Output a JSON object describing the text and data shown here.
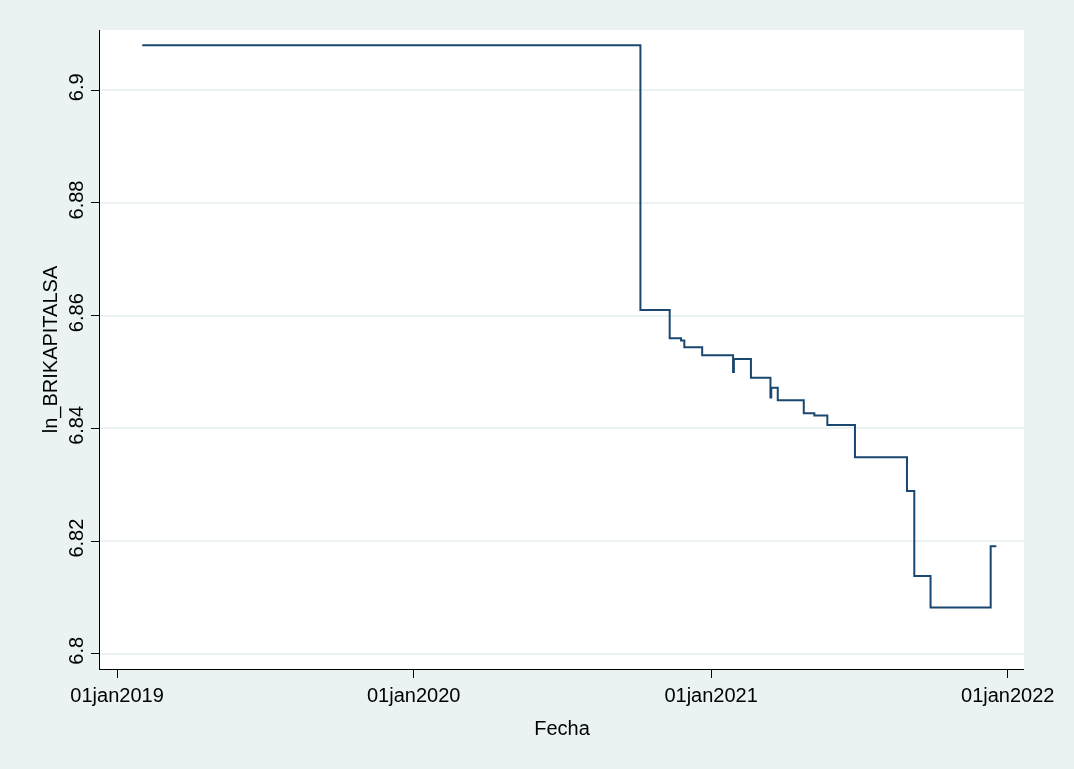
{
  "chart_data": {
    "type": "step",
    "xlabel": "Fecha",
    "ylabel": "ln_BRIKAPITALSA",
    "x": [
      "2019-02-01",
      "2020-10-06",
      "2020-11-11",
      "2020-11-25",
      "2020-11-29",
      "2020-12-21",
      "2021-01-28",
      "2021-01-29",
      "2021-02-19",
      "2021-03-15",
      "2021-03-16",
      "2021-03-24",
      "2021-04-25",
      "2021-05-08",
      "2021-05-24",
      "2021-06-27",
      "2021-08-30",
      "2021-09-08",
      "2021-09-28",
      "2021-12-11",
      "2021-12-18"
    ],
    "series": [
      {
        "color": "#1a476f",
        "values": [
          6.908,
          6.861,
          6.856,
          6.8556,
          6.8544,
          6.853,
          6.85,
          6.8523,
          6.849,
          6.8455,
          6.8472,
          6.845,
          6.8427,
          6.8423,
          6.8406,
          6.8349,
          6.8289,
          6.8138,
          6.8082,
          6.8191,
          6.8191
        ]
      }
    ],
    "xlim": [
      "2018-12-11",
      "2022-01-21"
    ],
    "xticks": [
      {
        "value": "2019-01-01",
        "label": "01jan2019"
      },
      {
        "value": "2020-01-01",
        "label": "01jan2020"
      },
      {
        "value": "2021-01-01",
        "label": "01jan2021"
      },
      {
        "value": "2022-01-01",
        "label": "01jan2022"
      }
    ],
    "ylim": [
      6.7973,
      6.9107
    ],
    "yticks": [
      6.8,
      6.82,
      6.84,
      6.86,
      6.88,
      6.9
    ],
    "grid": "y",
    "legend": false,
    "marker": "none",
    "line_style": "solid"
  }
}
